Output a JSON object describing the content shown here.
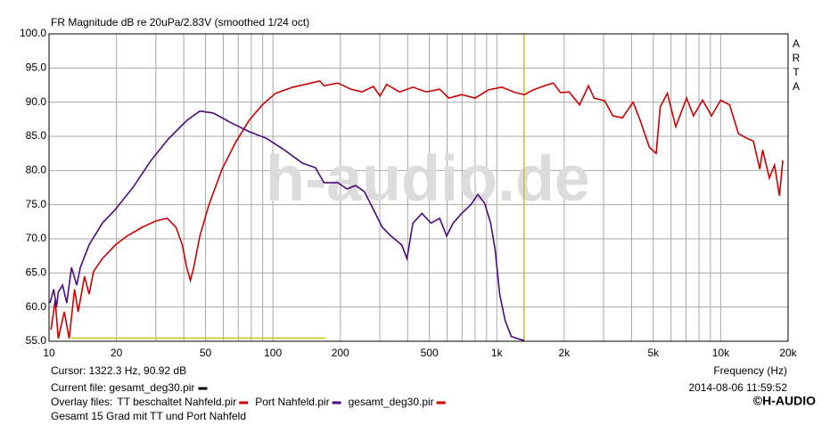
{
  "chart_data": {
    "type": "line",
    "title": "FR Magnitude dB re 20uPa/2.83V (smoothed 1/24 oct)",
    "side_label": "ARTA",
    "watermark": "h-audio.de",
    "xlabel": "Frequency (Hz)",
    "log_x": true,
    "grid": true,
    "xlim": [
      10,
      20000
    ],
    "ylim": [
      55,
      100
    ],
    "xticks": [
      10,
      20,
      50,
      100,
      200,
      500,
      {
        "value": 1000,
        "label": "1k"
      },
      {
        "value": 2000,
        "label": "2k"
      },
      {
        "value": 5000,
        "label": "5k"
      },
      {
        "value": 10000,
        "label": "10k"
      },
      {
        "value": 20000,
        "label": "20k"
      }
    ],
    "xgrid_minor": [
      30,
      40,
      60,
      70,
      80,
      90,
      300,
      400,
      600,
      700,
      800,
      900,
      3000,
      4000,
      6000,
      7000,
      8000,
      9000
    ],
    "yticks": [
      {
        "value": 100,
        "label": "100.0"
      },
      {
        "value": 95,
        "label": "95.0"
      },
      {
        "value": 90,
        "label": "90.0"
      },
      {
        "value": 85,
        "label": "85.0"
      },
      {
        "value": 80,
        "label": "80.0"
      },
      {
        "value": 75,
        "label": "75.0"
      },
      {
        "value": 70,
        "label": "70.0"
      },
      {
        "value": 65,
        "label": "65.0"
      },
      {
        "value": 60,
        "label": "60.0"
      },
      {
        "value": 55,
        "label": "55.0"
      }
    ],
    "cursor_x": 1322.3,
    "cursor_text": "Cursor: 1322.3 Hz, 90.92 dB",
    "current_file_label": "Current file: gesamt_deg30.pir",
    "current_file_color": "#000000",
    "overlay_label": "Overlay files:",
    "overlay_extra": {
      "name": "gesamt_deg30.pir",
      "color": "#cc0000"
    },
    "datetime": "2014-08-06  11:59:52",
    "copyright": "©H-AUDIO",
    "footer": "Gesamt 15 Grad mit TT und Port Nahfeld",
    "series": [
      {
        "name": "TT beschaltet Nahfeld.pir",
        "color": "#cc0000",
        "x": [
          10.2,
          10.65,
          11.0,
          11.7,
          12.3,
          13.0,
          13.5,
          14.4,
          15.1,
          15.8,
          17.3,
          19.8,
          22.3,
          26.1,
          29.9,
          33.7,
          36.9,
          39.4,
          41.2,
          42.8,
          44.3,
          47.2,
          51.8,
          59.3,
          68.1,
          78.1,
          89.6,
          102.8,
          123,
          148,
          162,
          169,
          195,
          223,
          250,
          281,
          301,
          322,
          368,
          422,
          485,
          556,
          610,
          697,
          800,
          917,
          1053,
          1207,
          1328,
          1455,
          1630,
          1788,
          1925,
          2105,
          2342,
          2568,
          2720,
          3030,
          3300,
          3640,
          4060,
          4340,
          4800,
          5150,
          5370,
          5780,
          6300,
          7040,
          7560,
          8300,
          9100,
          10000,
          10960,
          12000,
          13100,
          14000,
          14960,
          15400,
          16500,
          17400,
          18300,
          18950
        ],
        "values": [
          56.7,
          61.0,
          55.4,
          59.3,
          55.4,
          62.6,
          59.3,
          64.5,
          61.9,
          65.2,
          67.1,
          69.1,
          70.4,
          71.7,
          72.6,
          73.0,
          71.7,
          69.1,
          65.8,
          63.9,
          65.8,
          70.4,
          75.0,
          80.2,
          84.1,
          87.3,
          89.6,
          91.3,
          92.2,
          92.8,
          93.1,
          92.4,
          92.8,
          91.9,
          91.5,
          92.3,
          90.9,
          92.6,
          91.5,
          92.2,
          91.5,
          91.9,
          90.6,
          91.1,
          90.6,
          91.8,
          92.2,
          91.4,
          91.1,
          91.8,
          92.4,
          92.8,
          91.4,
          91.5,
          89.6,
          92.4,
          90.6,
          90.2,
          88.0,
          87.7,
          90.0,
          87.6,
          83.4,
          82.5,
          89.3,
          91.3,
          86.4,
          90.6,
          88.0,
          90.3,
          88.0,
          90.3,
          89.6,
          85.4,
          84.7,
          84.3,
          80.2,
          83.0,
          78.9,
          80.8,
          76.3,
          81.5
        ]
      },
      {
        "name": "Port Nahfeld.pir",
        "color": "#4b0a7d",
        "x": [
          10.1,
          10.5,
          10.8,
          11.0,
          11.5,
          12.0,
          12.6,
          13.3,
          13.8,
          15.1,
          17.3,
          19.8,
          23.8,
          28.6,
          34.3,
          41.2,
          47.2,
          54.2,
          65.0,
          78.1,
          93.7,
          112.5,
          135,
          155,
          169,
          195,
          214,
          234,
          256,
          281,
          308,
          337,
          376,
          397,
          422,
          463,
          508,
          556,
          597,
          638,
          697,
          766,
          823,
          882,
          939,
          983,
          1030,
          1090,
          1160,
          1233,
          1328
        ],
        "values": [
          60.6,
          62.6,
          60.0,
          62.2,
          63.2,
          60.6,
          65.8,
          63.2,
          65.8,
          69.1,
          72.3,
          74.3,
          77.6,
          81.5,
          84.7,
          87.3,
          88.7,
          88.4,
          87.0,
          85.7,
          84.7,
          83.0,
          81.1,
          80.4,
          78.2,
          78.2,
          77.3,
          77.8,
          76.9,
          74.3,
          71.7,
          70.4,
          69.1,
          67.1,
          72.3,
          73.7,
          72.3,
          73.0,
          70.4,
          72.3,
          73.7,
          75.0,
          76.5,
          75.2,
          72.3,
          68.4,
          61.9,
          58.0,
          55.7,
          55.4,
          55.1
        ]
      }
    ]
  }
}
